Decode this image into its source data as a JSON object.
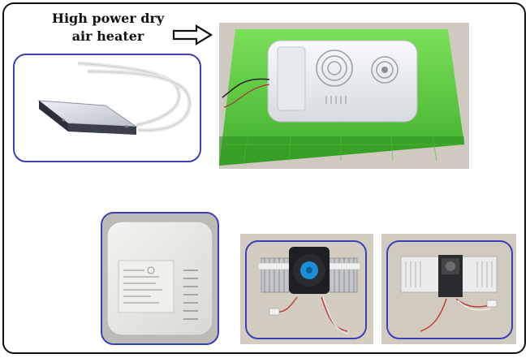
{
  "caption": {
    "line1": "High power dry",
    "line2": "air heater"
  },
  "icons": {
    "arrow": "right-arrow-outline-icon"
  },
  "colors": {
    "outline": "#3b3fb8",
    "frame": "#111111",
    "tray_green": "#5ccf3a",
    "fan_blue": "#1a8fd8"
  },
  "photos": [
    "heater-element-photo",
    "incubator-tray-photo",
    "heater-label-closeup-photo",
    "heater-fan-assembly-photo",
    "heater-fan-side-photo"
  ]
}
